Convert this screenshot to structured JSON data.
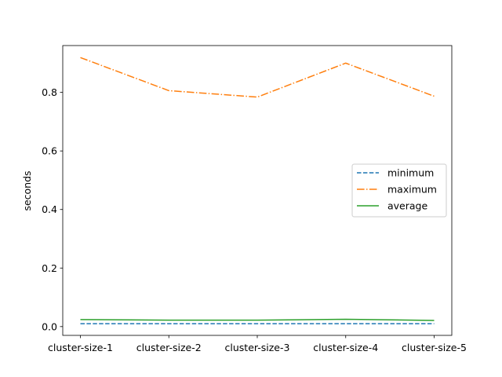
{
  "chart_data": {
    "type": "line",
    "title": "",
    "xlabel": "",
    "ylabel": "seconds",
    "categories": [
      "cluster-size-1",
      "cluster-size-2",
      "cluster-size-3",
      "cluster-size-4",
      "cluster-size-5"
    ],
    "ylim": [
      -0.03,
      0.96
    ],
    "yticks": [
      0.0,
      0.2,
      0.4,
      0.6,
      0.8
    ],
    "ytick_labels": [
      "0.0",
      "0.2",
      "0.4",
      "0.6",
      "0.8"
    ],
    "grid": false,
    "legend_position": "right",
    "series": [
      {
        "name": "minimum",
        "color": "#1f77b4",
        "style": "dashed",
        "values": [
          0.01,
          0.01,
          0.01,
          0.01,
          0.01
        ]
      },
      {
        "name": "maximum",
        "color": "#ff7f0e",
        "style": "dashdot",
        "values": [
          0.919,
          0.806,
          0.784,
          0.9,
          0.787
        ]
      },
      {
        "name": "average",
        "color": "#2ca02c",
        "style": "solid",
        "values": [
          0.024,
          0.022,
          0.022,
          0.025,
          0.021
        ]
      }
    ]
  }
}
